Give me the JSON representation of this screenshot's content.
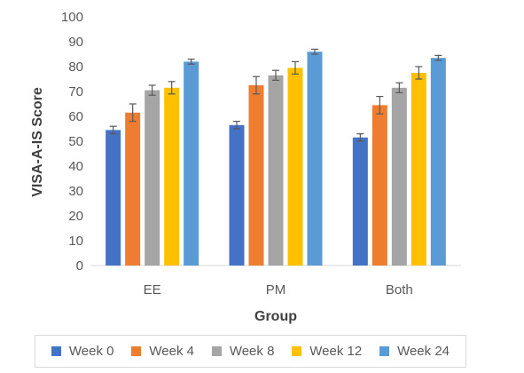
{
  "chart_data": {
    "type": "bar",
    "title": "",
    "xlabel": "Group",
    "ylabel": "VISA-A-IS Score",
    "ylim": [
      0,
      100
    ],
    "yticks": [
      0,
      10,
      20,
      30,
      40,
      50,
      60,
      70,
      80,
      90,
      100
    ],
    "categories": [
      "EE",
      "PM",
      "Both"
    ],
    "grid": false,
    "legend_position": "bottom",
    "series": [
      {
        "name": "Week 0",
        "color": "#4472C4",
        "values": [
          54.5,
          56.5,
          51.5
        ],
        "errors": [
          1.5,
          1.5,
          1.5
        ]
      },
      {
        "name": "Week 4",
        "color": "#ED7D31",
        "values": [
          61.5,
          72.5,
          64.5
        ],
        "errors": [
          3.5,
          3.5,
          3.5
        ]
      },
      {
        "name": "Week 8",
        "color": "#A5A5A5",
        "values": [
          70.5,
          76.5,
          71.5
        ],
        "errors": [
          2.0,
          2.0,
          2.0
        ]
      },
      {
        "name": "Week 12",
        "color": "#FFC000",
        "values": [
          71.5,
          79.5,
          77.5
        ],
        "errors": [
          2.5,
          2.5,
          2.5
        ]
      },
      {
        "name": "Week 24",
        "color": "#5B9BD5",
        "values": [
          82.0,
          86.0,
          83.5
        ],
        "errors": [
          1.0,
          1.0,
          1.0
        ]
      }
    ]
  },
  "legend": {
    "items": [
      {
        "label": "Week 0",
        "color": "#4472C4"
      },
      {
        "label": "Week 4",
        "color": "#ED7D31"
      },
      {
        "label": "Week 8",
        "color": "#A5A5A5"
      },
      {
        "label": "Week 12",
        "color": "#FFC000"
      },
      {
        "label": "Week 24",
        "color": "#5B9BD5"
      }
    ]
  }
}
